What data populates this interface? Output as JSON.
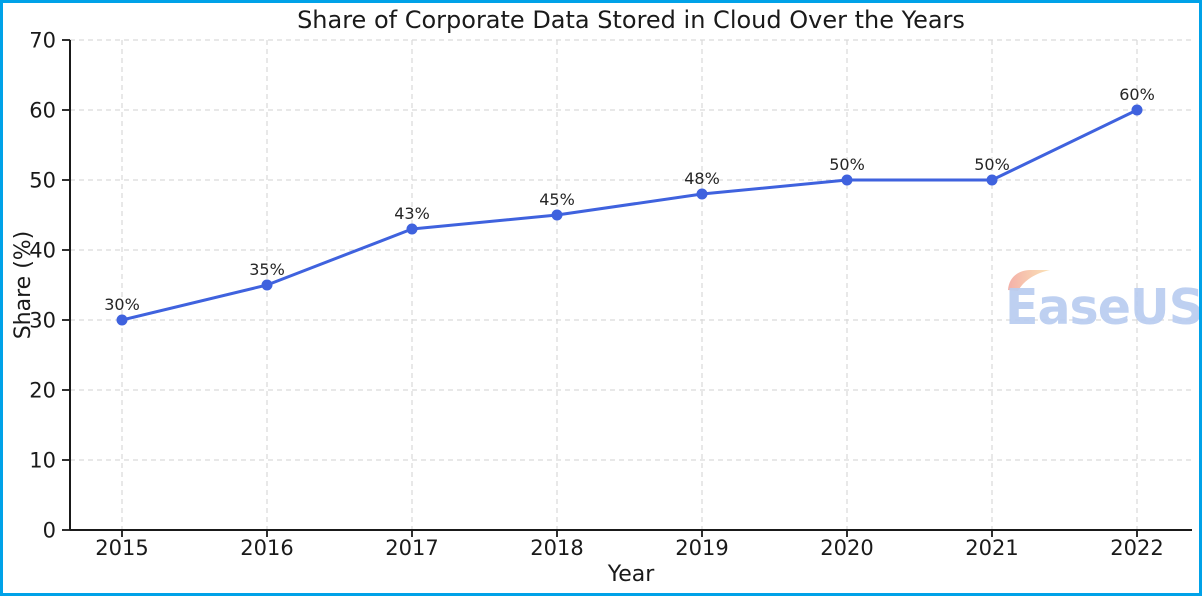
{
  "frame": {
    "border_color": "#00a2e8",
    "background": "#ffffff"
  },
  "chart_data": {
    "type": "line",
    "title": "Share of Corporate Data Stored in Cloud Over the Years",
    "xlabel": "Year",
    "ylabel": "Share (%)",
    "categories": [
      "2015",
      "2016",
      "2017",
      "2018",
      "2019",
      "2020",
      "2021",
      "2022"
    ],
    "values": [
      30,
      35,
      43,
      45,
      48,
      50,
      50,
      60
    ],
    "point_labels": [
      "30%",
      "35%",
      "43%",
      "45%",
      "48%",
      "50%",
      "50%",
      "60%"
    ],
    "ylim": [
      0,
      70
    ],
    "yticks": [
      0,
      10,
      20,
      30,
      40,
      50,
      60,
      70
    ],
    "grid": true,
    "grid_style": "dashed",
    "legend": false,
    "line_color": "#3f62de",
    "marker_color": "#3f62de",
    "grid_color": "#d9d9d9",
    "axis_color": "#1a1a1a",
    "text_color": "#1a1a1a",
    "annotation_color": "#262626"
  },
  "watermark": {
    "text": "EaseUS",
    "text_color": "#b9cdf0",
    "swoosh_gradient": [
      "#f0968b",
      "#f9d99f"
    ]
  }
}
